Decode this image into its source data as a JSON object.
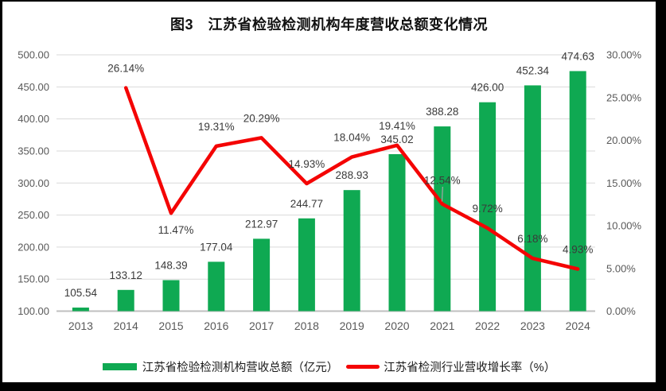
{
  "window": {
    "frame_color": "#000000",
    "page_background": "#ffffff"
  },
  "chart_data": {
    "type": "combo-bar-line",
    "title": "图3　江苏省检验检测机构年度营收总额变化情况",
    "categories": [
      "2013",
      "2014",
      "2015",
      "2016",
      "2017",
      "2018",
      "2019",
      "2020",
      "2021",
      "2022",
      "2023",
      "2024"
    ],
    "series": [
      {
        "name": "江苏省检验检测机构营收总额（亿元）",
        "type": "bar",
        "axis": "left",
        "values": [
          105.54,
          133.12,
          148.39,
          177.04,
          212.97,
          244.77,
          288.93,
          345.02,
          388.28,
          426.0,
          452.34,
          474.63
        ],
        "labels": [
          "105.54",
          "133.12",
          "148.39",
          "177.04",
          "212.97",
          "244.77",
          "288.93",
          "345.02",
          "388.28",
          "426.00",
          "452.34",
          "474.63"
        ]
      },
      {
        "name": "江苏省检测行业营收增长率（%）",
        "type": "line",
        "axis": "right",
        "values": [
          null,
          26.14,
          11.47,
          19.31,
          20.29,
          14.93,
          18.04,
          19.41,
          12.54,
          9.72,
          6.18,
          4.93
        ],
        "labels": [
          null,
          "26.14%",
          "11.47%",
          "19.31%",
          "20.29%",
          "14.93%",
          "18.04%",
          "19.41%",
          "12.54%",
          "9.72%",
          "6.18%",
          "4.93%"
        ]
      }
    ],
    "left_axis": {
      "min": 100,
      "max": 500,
      "step": 50,
      "tick_labels": [
        "500.00",
        "450.00",
        "400.00",
        "350.00",
        "300.00",
        "250.00",
        "200.00",
        "150.00",
        "100.00"
      ]
    },
    "right_axis": {
      "min": 0,
      "max": 30,
      "step": 5,
      "tick_labels": [
        "30.00%",
        "25.00%",
        "20.00%",
        "15.00%",
        "10.00%",
        "5.00%",
        "0.00%"
      ]
    },
    "grid": true,
    "legend_position": "bottom"
  },
  "legend": {
    "bar_label": "江苏省检验检测机构营收总额（亿元）",
    "line_label": "江苏省检测行业营收增长率（%）"
  },
  "colors": {
    "bar": "#0fa952",
    "line": "#f40404",
    "grid": "#d9d9d9",
    "axis_line": "#bfbfbf",
    "tick_text": "#595959",
    "data_label_text": "#3a3a3a",
    "leader_line": "#a6a6a6"
  }
}
